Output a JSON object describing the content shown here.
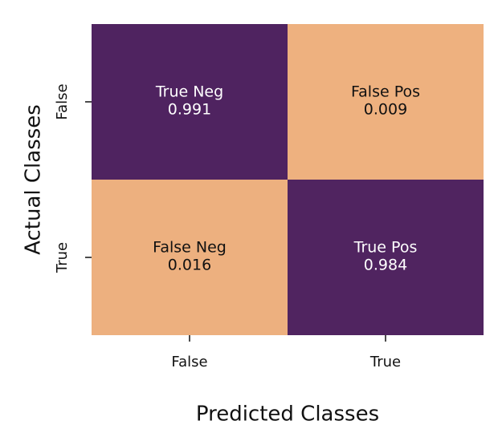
{
  "chart_data": {
    "type": "heatmap",
    "x_label": "Predicted Classes",
    "y_label": "Actual Classes",
    "x_categories": [
      "False",
      "True"
    ],
    "y_categories": [
      "False",
      "True"
    ],
    "cell_names": [
      [
        "True Neg",
        "False Pos"
      ],
      [
        "False Neg",
        "True Pos"
      ]
    ],
    "values": [
      [
        0.991,
        0.009
      ],
      [
        0.016,
        0.984
      ]
    ],
    "colormap": [
      "#eeb17f",
      "#4f2360"
    ],
    "text_colors": [
      "#111111",
      "#ffffff"
    ]
  }
}
